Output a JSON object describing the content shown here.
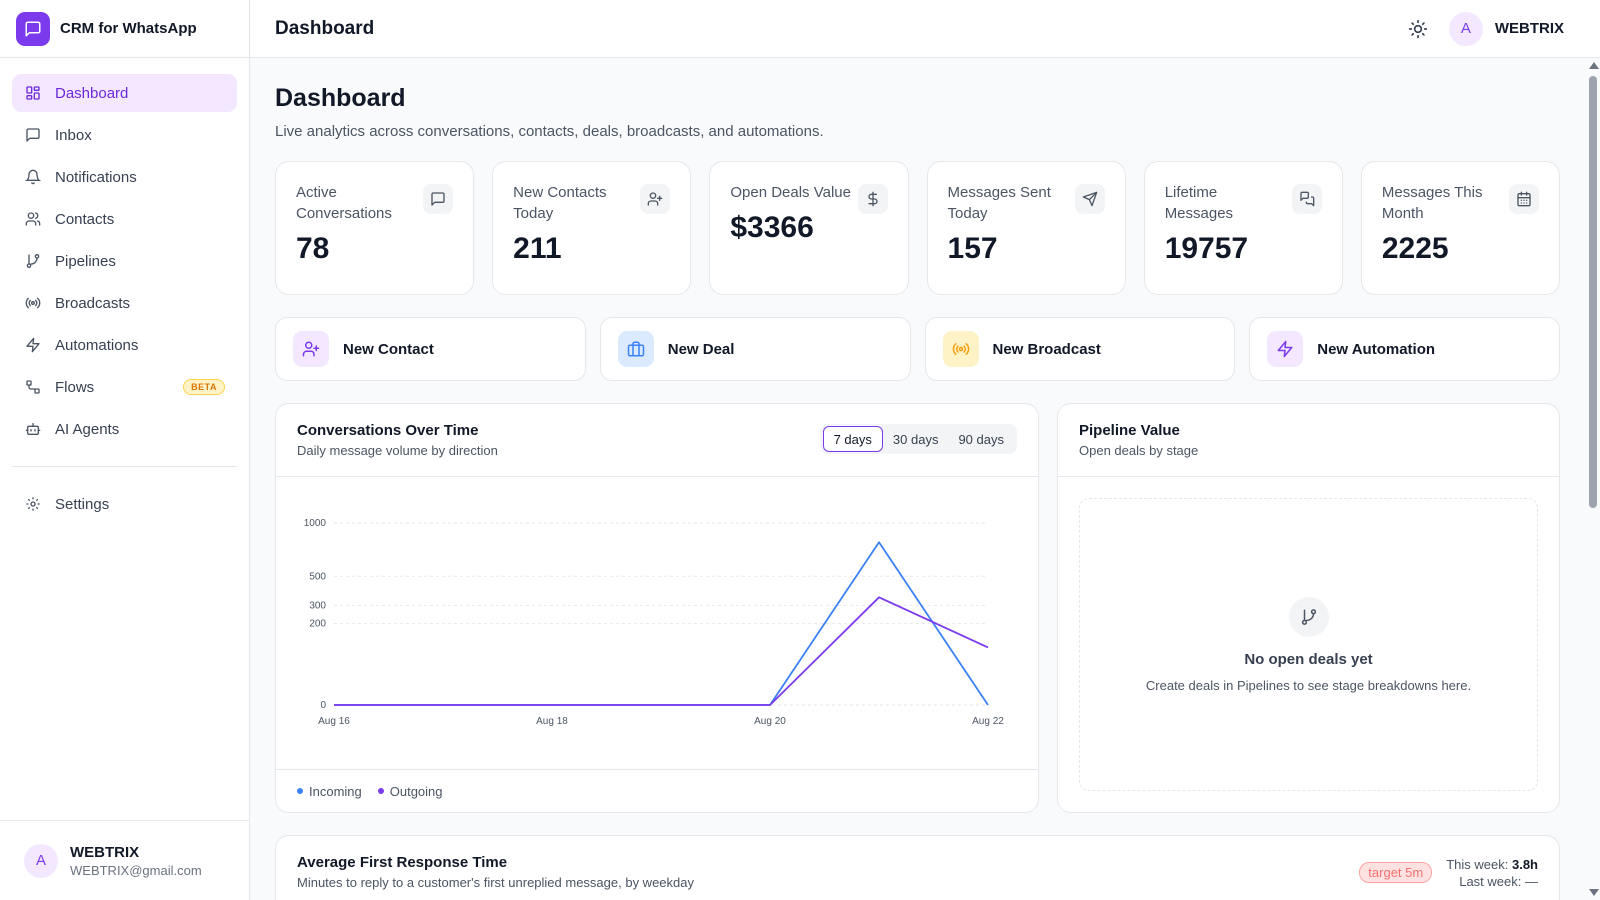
{
  "app": {
    "name": "CRM for WhatsApp"
  },
  "header": {
    "title": "Dashboard",
    "user": "WEBTRIX",
    "avatar_letter": "A"
  },
  "sidebar": {
    "items": [
      {
        "label": "Dashboard",
        "icon": "dashboard-icon",
        "active": true
      },
      {
        "label": "Inbox",
        "icon": "inbox-icon"
      },
      {
        "label": "Notifications",
        "icon": "bell-icon"
      },
      {
        "label": "Contacts",
        "icon": "users-icon"
      },
      {
        "label": "Pipelines",
        "icon": "git-branch-icon"
      },
      {
        "label": "Broadcasts",
        "icon": "broadcast-icon"
      },
      {
        "label": "Automations",
        "icon": "zap-icon"
      },
      {
        "label": "Flows",
        "icon": "flow-icon",
        "badge": "BETA"
      },
      {
        "label": "AI Agents",
        "icon": "bot-icon"
      }
    ],
    "settings": {
      "label": "Settings",
      "icon": "gear-icon"
    },
    "footer": {
      "name": "WEBTRIX",
      "email": "WEBTRIX@gmail.com",
      "avatar_letter": "A"
    }
  },
  "page": {
    "title": "Dashboard",
    "subtitle": "Live analytics across conversations, contacts, deals, broadcasts, and automations."
  },
  "stats": [
    {
      "label": "Active Conversations",
      "value": "78",
      "icon": "message-square-icon"
    },
    {
      "label": "New Contacts Today",
      "value": "211",
      "icon": "user-plus-icon"
    },
    {
      "label": "Open Deals Value",
      "value": "$3366",
      "icon": "dollar-icon"
    },
    {
      "label": "Messages Sent Today",
      "value": "157",
      "icon": "send-icon"
    },
    {
      "label": "Lifetime Messages",
      "value": "19757",
      "icon": "messages-icon"
    },
    {
      "label": "Messages This Month",
      "value": "2225",
      "icon": "calendar-icon"
    }
  ],
  "actions": [
    {
      "label": "New Contact",
      "icon": "user-plus-icon",
      "color": "#7c3aed",
      "bg": "#f3e8ff"
    },
    {
      "label": "New Deal",
      "icon": "briefcase-icon",
      "color": "#3b82f6",
      "bg": "#dbeafe"
    },
    {
      "label": "New Broadcast",
      "icon": "broadcast-icon",
      "color": "#f59e0b",
      "bg": "#fef3c7"
    },
    {
      "label": "New Automation",
      "icon": "zap-icon",
      "color": "#7c3aed",
      "bg": "#f3e8ff"
    }
  ],
  "conversations_panel": {
    "title": "Conversations Over Time",
    "subtitle": "Daily message volume by direction",
    "ranges": [
      "7 days",
      "30 days",
      "90 days"
    ],
    "selected_range": "7 days"
  },
  "pipeline_panel": {
    "title": "Pipeline Value",
    "subtitle": "Open deals by stage",
    "empty_title": "No open deals yet",
    "empty_subtitle": "Create deals in Pipelines to see stage breakdowns here."
  },
  "response_panel": {
    "title": "Average First Response Time",
    "subtitle": "Minutes to reply to a customer's first unreplied message, by weekday",
    "target": "target 5m",
    "this_week_label": "This week:",
    "this_week_value": "3.8h",
    "last_week_label": "Last week:",
    "last_week_value": "—"
  },
  "chart_data": {
    "type": "line",
    "x": [
      "Aug 16",
      "Aug 17",
      "Aug 18",
      "Aug 19",
      "Aug 20",
      "Aug 21",
      "Aug 22"
    ],
    "x_tick_labels": [
      "Aug 16",
      "Aug 18",
      "Aug 20",
      "Aug 22"
    ],
    "y_ticks": [
      0,
      200,
      300,
      500,
      1000
    ],
    "y_scale": "sqrt",
    "ylim": [
      0,
      1000
    ],
    "grid": true,
    "legend": "bottom-left",
    "series": [
      {
        "name": "Incoming",
        "color": "#3b82f6",
        "values": [
          0,
          0,
          0,
          0,
          0,
          800,
          0
        ]
      },
      {
        "name": "Outgoing",
        "color": "#7c3aed",
        "values": [
          0,
          0,
          0,
          0,
          0,
          350,
          100
        ]
      }
    ]
  }
}
